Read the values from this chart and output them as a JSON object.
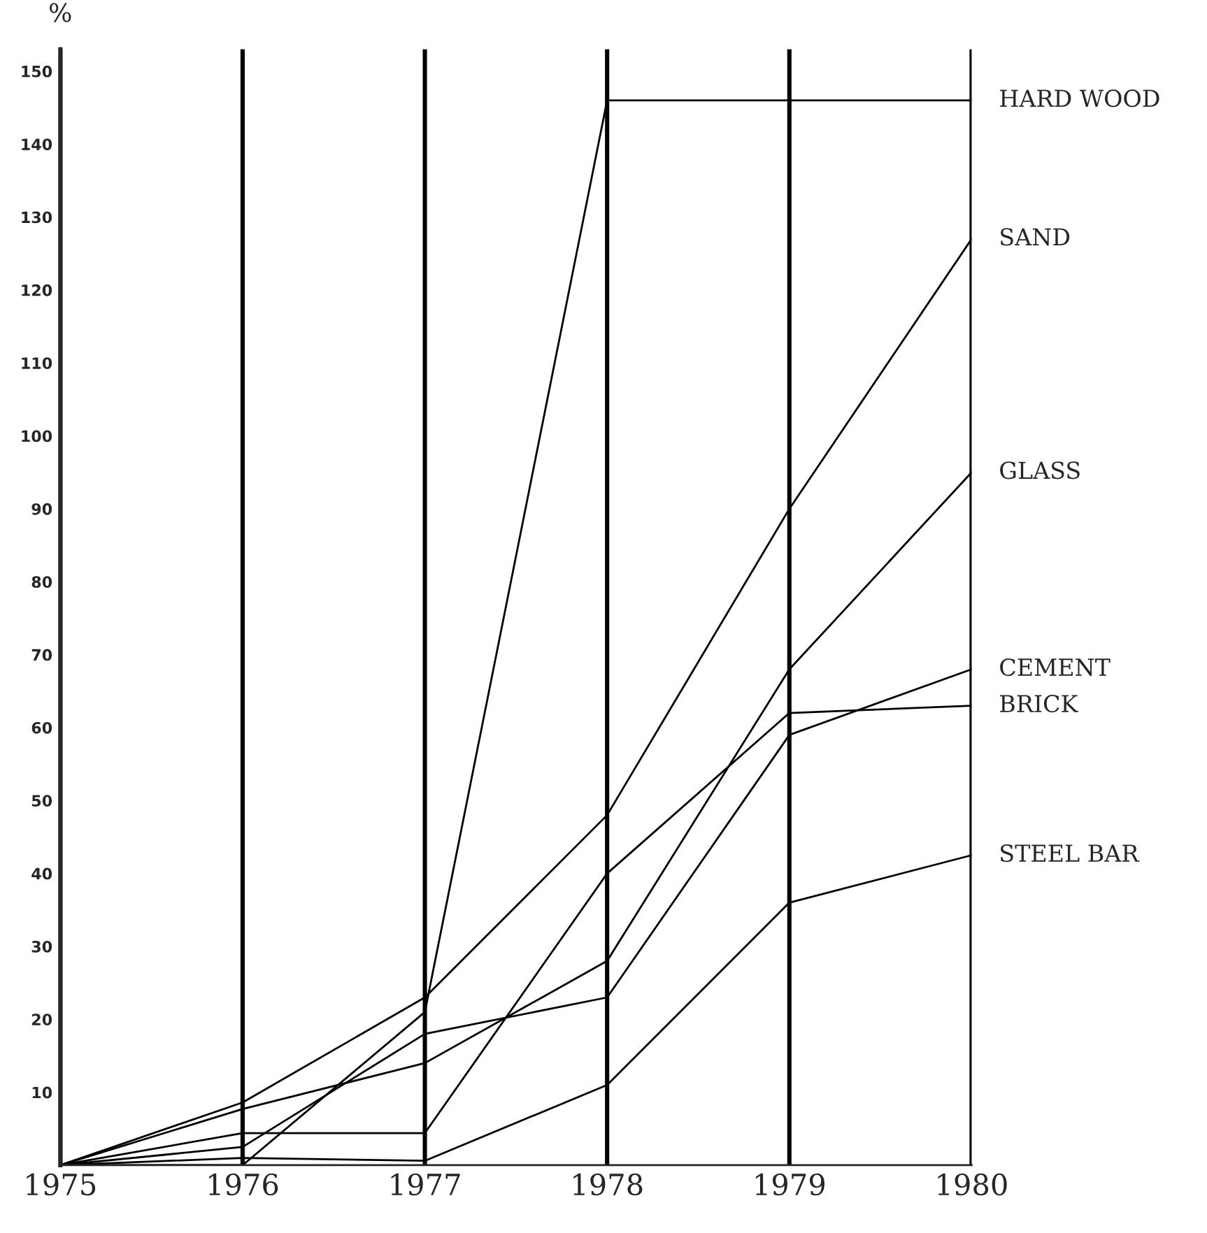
{
  "chart_data": {
    "type": "line",
    "ylabel": "%",
    "x": [
      1975,
      1976,
      1977,
      1978,
      1979,
      1980
    ],
    "xlim": [
      1975,
      1980
    ],
    "xticks": [
      1975,
      1976,
      1977,
      1978,
      1979,
      1980
    ],
    "ylim": [
      0,
      153
    ],
    "yticks": [
      10,
      20,
      30,
      40,
      50,
      60,
      70,
      80,
      90,
      100,
      110,
      120,
      130,
      140,
      150
    ],
    "grid": "x",
    "marker": "none",
    "line_style": "solid",
    "series": [
      {
        "name": "HARD WOOD",
        "color": "#000000",
        "values": [
          0,
          0,
          21,
          146,
          146,
          146
        ]
      },
      {
        "name": "SAND",
        "color": "#000000",
        "values": [
          0,
          8.6,
          23,
          48,
          90,
          127
        ]
      },
      {
        "name": "GLASS",
        "color": "#000000",
        "values": [
          0,
          7.7,
          14,
          28,
          68,
          95
        ]
      },
      {
        "name": "CEMENT",
        "color": "#000000",
        "values": [
          0,
          2.5,
          18,
          23,
          59,
          68
        ]
      },
      {
        "name": "BRICK",
        "color": "#000000",
        "values": [
          0,
          4.4,
          4.4,
          40,
          62,
          63
        ]
      },
      {
        "name": "STEEL BAR",
        "color": "#000000",
        "values": [
          0,
          1,
          0.6,
          11,
          36,
          42.5
        ]
      }
    ]
  }
}
